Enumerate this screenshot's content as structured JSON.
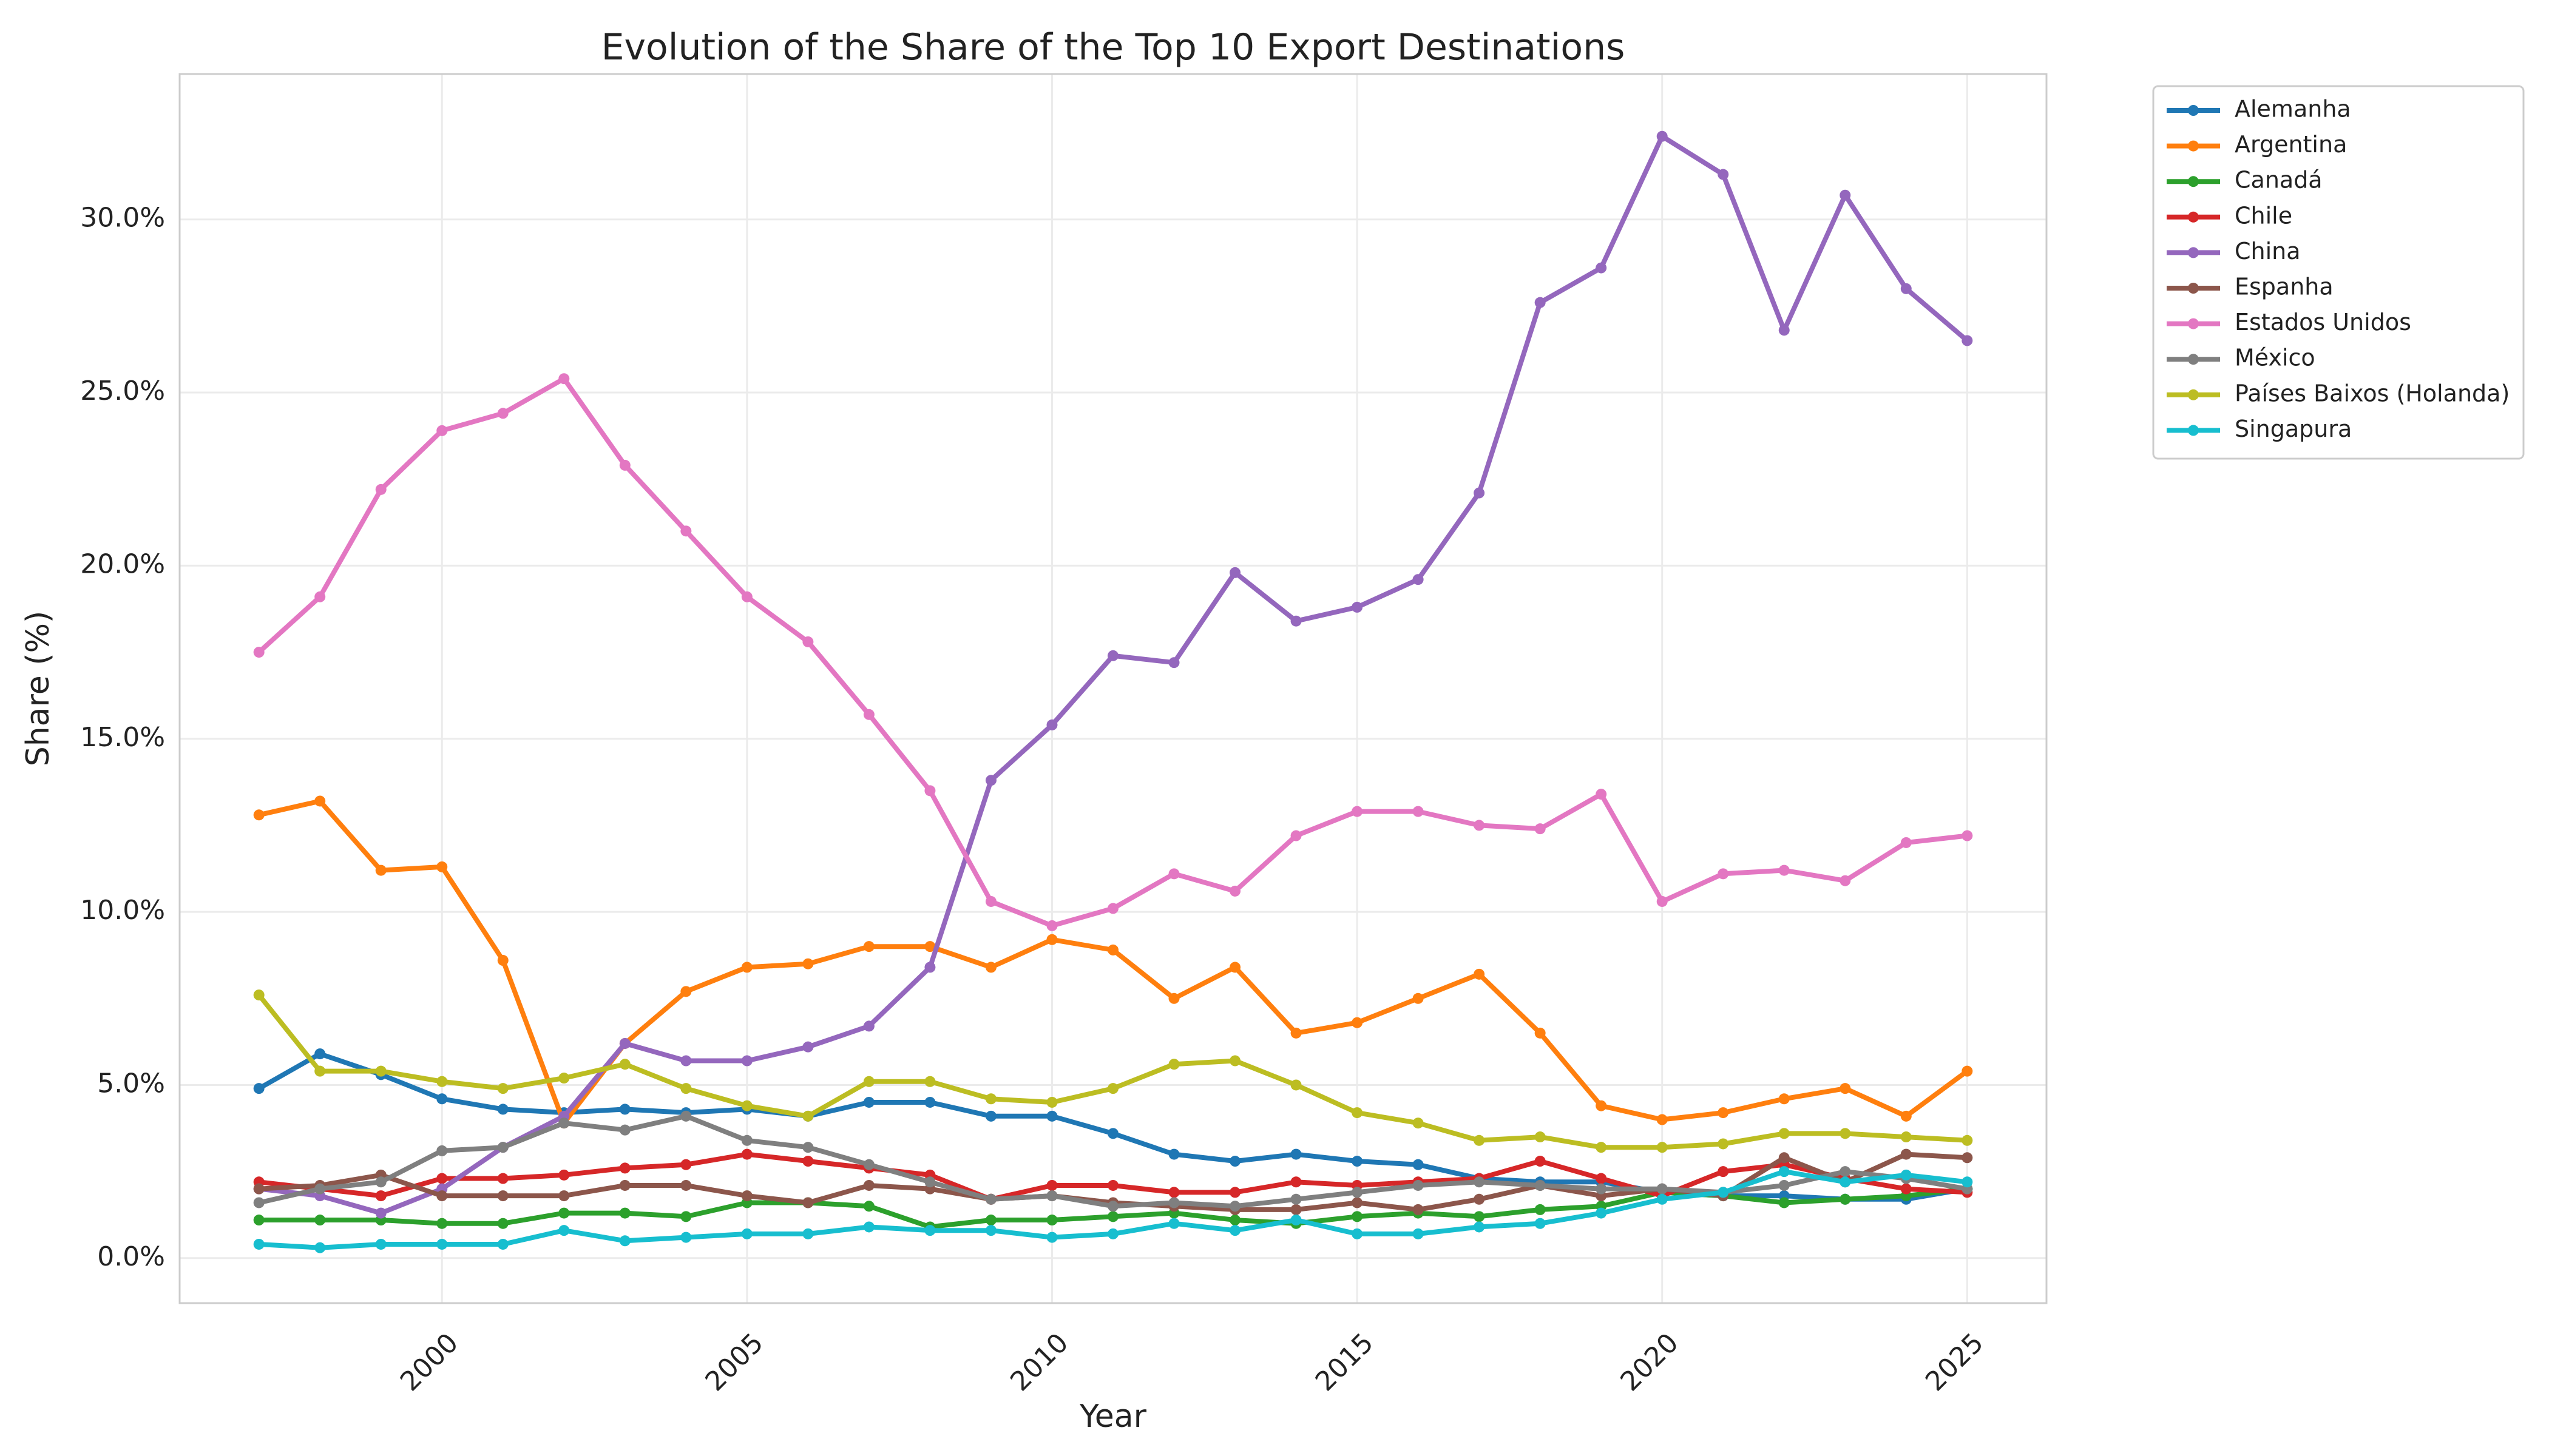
{
  "chart_data": {
    "type": "line",
    "title": "Evolution of the Share of the Top 10 Export Destinations",
    "xlabel": "Year",
    "ylabel": "Share (%)",
    "xlim": [
      1995.7,
      2026.3
    ],
    "ylim": [
      -1.3,
      34.2
    ],
    "xticks": [
      2000,
      2005,
      2010,
      2015,
      2020,
      2025
    ],
    "xtick_labels": [
      "2000",
      "2005",
      "2010",
      "2015",
      "2020",
      "2025"
    ],
    "yticks": [
      0,
      5,
      10,
      15,
      20,
      25,
      30
    ],
    "ytick_labels": [
      "0.0%",
      "5.0%",
      "10.0%",
      "15.0%",
      "20.0%",
      "25.0%",
      "30.0%"
    ],
    "grid": true,
    "legend_position": "outside-right-top",
    "x": [
      1997,
      1998,
      1999,
      2000,
      2001,
      2002,
      2003,
      2004,
      2005,
      2006,
      2007,
      2008,
      2009,
      2010,
      2011,
      2012,
      2013,
      2014,
      2015,
      2016,
      2017,
      2018,
      2019,
      2020,
      2021,
      2022,
      2023,
      2024,
      2025
    ],
    "series": [
      {
        "name": "Alemanha",
        "color": "#1f77b4",
        "values": [
          4.9,
          5.9,
          5.3,
          4.6,
          4.3,
          4.2,
          4.3,
          4.2,
          4.3,
          4.1,
          4.5,
          4.5,
          4.1,
          4.1,
          3.6,
          3.0,
          2.8,
          3.0,
          2.8,
          2.7,
          2.3,
          2.2,
          2.2,
          1.9,
          1.8,
          1.8,
          1.7,
          1.7,
          2.0
        ]
      },
      {
        "name": "Argentina",
        "color": "#ff7f0e",
        "values": [
          12.8,
          13.2,
          11.2,
          11.3,
          8.6,
          3.9,
          6.2,
          7.7,
          8.4,
          8.5,
          9.0,
          9.0,
          8.4,
          9.2,
          8.9,
          7.5,
          8.4,
          6.5,
          6.8,
          7.5,
          8.2,
          6.5,
          4.4,
          4.0,
          4.2,
          4.6,
          4.9,
          4.1,
          5.4
        ]
      },
      {
        "name": "Canadá",
        "color": "#2ca02c",
        "values": [
          1.1,
          1.1,
          1.1,
          1.0,
          1.0,
          1.3,
          1.3,
          1.2,
          1.6,
          1.6,
          1.5,
          0.9,
          1.1,
          1.1,
          1.2,
          1.3,
          1.1,
          1.0,
          1.2,
          1.3,
          1.2,
          1.4,
          1.5,
          1.9,
          1.8,
          1.6,
          1.7,
          1.8,
          2.0
        ]
      },
      {
        "name": "Chile",
        "color": "#d62728",
        "values": [
          2.2,
          2.0,
          1.8,
          2.3,
          2.3,
          2.4,
          2.6,
          2.7,
          3.0,
          2.8,
          2.6,
          2.4,
          1.7,
          2.1,
          2.1,
          1.9,
          1.9,
          2.2,
          2.1,
          2.2,
          2.3,
          2.8,
          2.3,
          1.8,
          2.5,
          2.7,
          2.3,
          2.0,
          1.9
        ]
      },
      {
        "name": "China",
        "color": "#9467bd",
        "values": [
          2.0,
          1.8,
          1.3,
          2.0,
          3.2,
          4.1,
          6.2,
          5.7,
          5.7,
          6.1,
          6.7,
          8.4,
          13.8,
          15.4,
          17.4,
          17.2,
          19.8,
          18.4,
          18.8,
          19.6,
          22.1,
          27.6,
          28.6,
          32.4,
          31.3,
          26.8,
          30.7,
          28.0,
          26.5
        ]
      },
      {
        "name": "Espanha",
        "color": "#8c564b",
        "values": [
          2.0,
          2.1,
          2.4,
          1.8,
          1.8,
          1.8,
          2.1,
          2.1,
          1.8,
          1.6,
          2.1,
          2.0,
          1.7,
          1.8,
          1.6,
          1.5,
          1.4,
          1.4,
          1.6,
          1.4,
          1.7,
          2.1,
          1.8,
          2.0,
          1.8,
          2.9,
          2.2,
          3.0,
          2.9
        ]
      },
      {
        "name": "Estados Unidos",
        "color": "#e377c2",
        "values": [
          17.5,
          19.1,
          22.2,
          23.9,
          24.4,
          25.4,
          22.9,
          21.0,
          19.1,
          17.8,
          15.7,
          13.5,
          10.3,
          9.6,
          10.1,
          11.1,
          10.6,
          12.2,
          12.9,
          12.9,
          12.5,
          12.4,
          13.4,
          10.3,
          11.1,
          11.2,
          10.9,
          12.0,
          12.2
        ]
      },
      {
        "name": "México",
        "color": "#7f7f7f",
        "values": [
          1.6,
          2.0,
          2.2,
          3.1,
          3.2,
          3.9,
          3.7,
          4.1,
          3.4,
          3.2,
          2.7,
          2.2,
          1.7,
          1.8,
          1.5,
          1.6,
          1.5,
          1.7,
          1.9,
          2.1,
          2.2,
          2.1,
          2.0,
          2.0,
          1.9,
          2.1,
          2.5,
          2.3,
          2.0
        ]
      },
      {
        "name": "Países Baixos (Holanda)",
        "color": "#bcbd22",
        "values": [
          7.6,
          5.4,
          5.4,
          5.1,
          4.9,
          5.2,
          5.6,
          4.9,
          4.4,
          4.1,
          5.1,
          5.1,
          4.6,
          4.5,
          4.9,
          5.6,
          5.7,
          5.0,
          4.2,
          3.9,
          3.4,
          3.5,
          3.2,
          3.2,
          3.3,
          3.6,
          3.6,
          3.5,
          3.4
        ]
      },
      {
        "name": "Singapura",
        "color": "#17becf",
        "values": [
          0.4,
          0.3,
          0.4,
          0.4,
          0.4,
          0.8,
          0.5,
          0.6,
          0.7,
          0.7,
          0.9,
          0.8,
          0.8,
          0.6,
          0.7,
          1.0,
          0.8,
          1.1,
          0.7,
          0.7,
          0.9,
          1.0,
          1.3,
          1.7,
          1.9,
          2.5,
          2.2,
          2.4,
          2.2
        ]
      }
    ]
  }
}
